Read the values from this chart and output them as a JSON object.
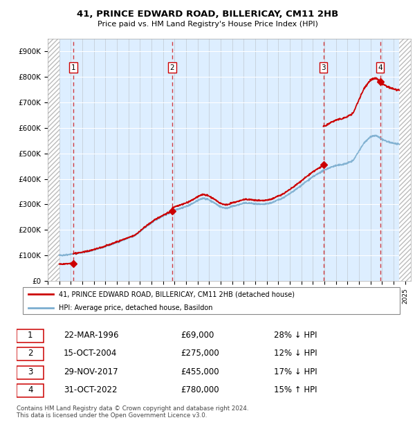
{
  "title1": "41, PRINCE EDWARD ROAD, BILLERICAY, CM11 2HB",
  "title2": "Price paid vs. HM Land Registry's House Price Index (HPI)",
  "ylim": [
    0,
    950000
  ],
  "xlim_start": 1994.0,
  "xlim_end": 2025.5,
  "hpi_data_start": 1995.0,
  "hpi_data_end": 2024.5,
  "yticks": [
    0,
    100000,
    200000,
    300000,
    400000,
    500000,
    600000,
    700000,
    800000,
    900000
  ],
  "ytick_labels": [
    "£0",
    "£100K",
    "£200K",
    "£300K",
    "£400K",
    "£500K",
    "£600K",
    "£700K",
    "£800K",
    "£900K"
  ],
  "xticks": [
    1994,
    1995,
    1996,
    1997,
    1998,
    1999,
    2000,
    2001,
    2002,
    2003,
    2004,
    2005,
    2006,
    2007,
    2008,
    2009,
    2010,
    2011,
    2012,
    2013,
    2014,
    2015,
    2016,
    2017,
    2018,
    2019,
    2020,
    2021,
    2022,
    2023,
    2024,
    2025
  ],
  "sale_dates": [
    1996.22,
    2004.79,
    2017.91,
    2022.83
  ],
  "sale_prices": [
    69000,
    275000,
    455000,
    780000
  ],
  "sale_labels": [
    "1",
    "2",
    "3",
    "4"
  ],
  "red_color": "#cc0000",
  "blue_color": "#7aadcf",
  "background_color": "#ddeeff",
  "legend_label_red": "41, PRINCE EDWARD ROAD, BILLERICAY, CM11 2HB (detached house)",
  "legend_label_blue": "HPI: Average price, detached house, Basildon",
  "table_data": [
    [
      "1",
      "22-MAR-1996",
      "£69,000",
      "28% ↓ HPI"
    ],
    [
      "2",
      "15-OCT-2004",
      "£275,000",
      "12% ↓ HPI"
    ],
    [
      "3",
      "29-NOV-2017",
      "£455,000",
      "17% ↓ HPI"
    ],
    [
      "4",
      "31-OCT-2022",
      "£780,000",
      "15% ↑ HPI"
    ]
  ],
  "footer": "Contains HM Land Registry data © Crown copyright and database right 2024.\nThis data is licensed under the Open Government Licence v3.0.",
  "hpi_years": [
    1995.0,
    1995.5,
    1996.0,
    1996.5,
    1997.0,
    1997.5,
    1998.0,
    1998.5,
    1999.0,
    1999.5,
    2000.0,
    2000.5,
    2001.0,
    2001.5,
    2002.0,
    2002.5,
    2003.0,
    2003.5,
    2004.0,
    2004.5,
    2005.0,
    2005.5,
    2006.0,
    2006.5,
    2007.0,
    2007.5,
    2008.0,
    2008.5,
    2009.0,
    2009.5,
    2010.0,
    2010.5,
    2011.0,
    2011.5,
    2012.0,
    2012.5,
    2013.0,
    2013.5,
    2014.0,
    2014.5,
    2015.0,
    2015.5,
    2016.0,
    2016.5,
    2017.0,
    2017.5,
    2018.0,
    2018.5,
    2019.0,
    2019.5,
    2020.0,
    2020.5,
    2021.0,
    2021.5,
    2022.0,
    2022.5,
    2023.0,
    2023.5,
    2024.0,
    2024.5
  ],
  "hpi_prices": [
    100000,
    102000,
    105000,
    108000,
    112000,
    116000,
    122000,
    128000,
    135000,
    143000,
    152000,
    160000,
    168000,
    176000,
    193000,
    212000,
    228000,
    243000,
    255000,
    265000,
    278000,
    285000,
    292000,
    302000,
    315000,
    325000,
    318000,
    305000,
    290000,
    285000,
    292000,
    298000,
    305000,
    305000,
    302000,
    300000,
    302000,
    308000,
    318000,
    328000,
    342000,
    358000,
    375000,
    392000,
    408000,
    422000,
    435000,
    445000,
    452000,
    456000,
    462000,
    472000,
    510000,
    545000,
    565000,
    570000,
    555000,
    545000,
    540000,
    535000
  ]
}
